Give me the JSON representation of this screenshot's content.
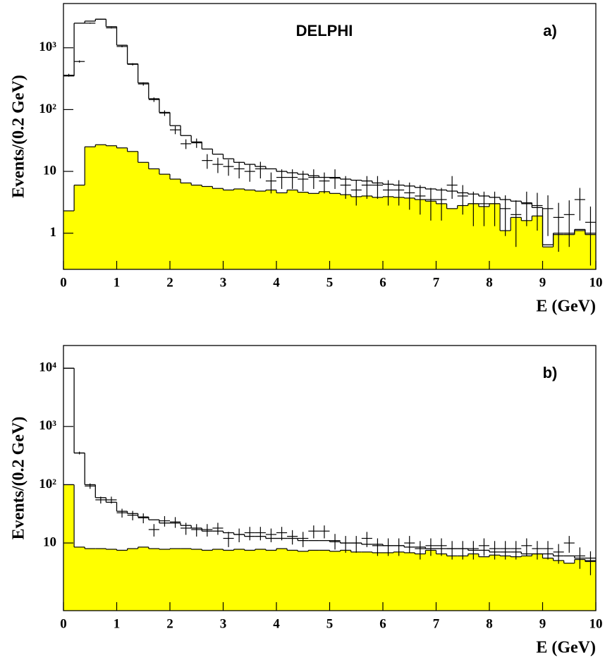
{
  "chart_data": [
    {
      "type": "histogram",
      "annotations": [
        "DELPHI",
        "a)"
      ],
      "y_label": "Events/(0.2 GeV)",
      "x_label": "E (GeV)",
      "log_y": true,
      "bins": [
        0,
        0.2,
        0.4,
        0.6,
        0.8,
        1,
        1.2,
        1.4,
        1.6,
        1.8,
        2,
        2.2,
        2.4,
        2.6,
        2.8,
        3,
        3.2,
        3.4,
        3.6,
        3.8,
        4,
        4.2,
        4.4,
        4.6,
        4.8,
        5,
        5.2,
        5.4,
        5.6,
        5.8,
        6,
        6.2,
        6.4,
        6.6,
        6.8,
        7,
        7.2,
        7.4,
        7.6,
        7.8,
        8,
        8.2,
        8.4,
        8.6,
        8.8,
        9,
        9.2,
        9.4,
        9.6,
        9.8,
        10
      ],
      "xlim": [
        0,
        10
      ],
      "xticks": [
        0,
        1,
        2,
        3,
        4,
        5,
        6,
        7,
        8,
        9,
        10
      ],
      "ylim": [
        0.26,
        5200
      ],
      "yticks": [
        1,
        10,
        {
          "value": 100,
          "label": "10²"
        },
        {
          "value": 1000,
          "label": "10³"
        }
      ],
      "series": [
        {
          "style": "fill",
          "color": "#ffff00",
          "values": [
            2.3,
            6,
            25,
            27,
            26,
            24,
            21,
            14,
            11,
            9,
            7.5,
            6.5,
            6,
            5.7,
            5.3,
            5,
            5.2,
            5,
            4.8,
            5,
            4.5,
            5,
            4.6,
            4.4,
            4.7,
            4.4,
            4.2,
            3.9,
            4,
            3.8,
            3.9,
            3.8,
            3.7,
            3.5,
            3.3,
            3,
            2.5,
            2.8,
            3,
            2.7,
            3,
            1.1,
            1.8,
            1.6,
            1.9,
            0.6,
            0.95,
            0.95,
            1.1,
            0.95
          ]
        },
        {
          "style": "step",
          "color": "#000000",
          "values": [
            350,
            2500,
            2700,
            2900,
            2200,
            1100,
            550,
            270,
            150,
            90,
            55,
            38,
            30,
            23,
            19,
            16,
            14,
            13,
            12,
            11,
            10,
            9.5,
            9,
            8.5,
            8,
            7.8,
            7.5,
            7.2,
            7,
            6.5,
            6.2,
            6,
            5.8,
            5.5,
            5.2,
            5,
            4.8,
            4.5,
            4.3,
            4,
            3.8,
            3.5,
            3.3,
            3.1,
            2.6,
            0.65,
            1,
            1,
            1.15,
            1
          ]
        },
        {
          "style": "points",
          "color": "#000000",
          "values": [
            360,
            600,
            2500,
            2900,
            2100,
            1050,
            540,
            260,
            145,
            88,
            47,
            28,
            29,
            15,
            13,
            12,
            11,
            10,
            11,
            7,
            8,
            8,
            7.5,
            8,
            7,
            8,
            6,
            5,
            6,
            6,
            5,
            5,
            4.5,
            4,
            3.5,
            3.5,
            6,
            4,
            3,
            3,
            3,
            2.5,
            2,
            3,
            2.8,
            2.5,
            1.8,
            2,
            3.5,
            1.5
          ],
          "errors": [
            19,
            24,
            50,
            54,
            46,
            32,
            23,
            16,
            12,
            9,
            7,
            5,
            5,
            4,
            3.6,
            3.5,
            3.3,
            3.2,
            3.3,
            2.6,
            2.8,
            2.8,
            2.7,
            2.8,
            2.6,
            2.8,
            2.4,
            2.2,
            2.4,
            2.4,
            2.2,
            2.2,
            2.1,
            2,
            1.9,
            1.9,
            2.4,
            2,
            1.7,
            1.7,
            1.7,
            1.6,
            1.4,
            1.7,
            1.7,
            1.6,
            1.3,
            1.4,
            1.9,
            1.2
          ]
        }
      ]
    },
    {
      "type": "histogram",
      "annotations": [
        "b)"
      ],
      "y_label": "Events/(0.2 GeV)",
      "x_label": "E (GeV)",
      "log_y": true,
      "bins": [
        0,
        0.2,
        0.4,
        0.6,
        0.8,
        1,
        1.2,
        1.4,
        1.6,
        1.8,
        2,
        2.2,
        2.4,
        2.6,
        2.8,
        3,
        3.2,
        3.4,
        3.6,
        3.8,
        4,
        4.2,
        4.4,
        4.6,
        4.8,
        5,
        5.2,
        5.4,
        5.6,
        5.8,
        6,
        6.2,
        6.4,
        6.6,
        6.8,
        7,
        7.2,
        7.4,
        7.6,
        7.8,
        8,
        8.2,
        8.4,
        8.6,
        8.8,
        9,
        9.2,
        9.4,
        9.6,
        9.8,
        10
      ],
      "xlim": [
        0,
        10
      ],
      "xticks": [
        0,
        1,
        2,
        3,
        4,
        5,
        6,
        7,
        8,
        9,
        10
      ],
      "ylim": [
        0.69,
        24500
      ],
      "yticks": [
        10,
        {
          "value": 100,
          "label": "10²"
        },
        {
          "value": 1000,
          "label": "10³"
        },
        {
          "value": 10000,
          "label": "10⁴"
        }
      ],
      "series": [
        {
          "style": "fill",
          "color": "#ffff00",
          "values": [
            100,
            8.5,
            8,
            8,
            7.8,
            7.5,
            8,
            8.5,
            8,
            7.8,
            8,
            8,
            7.8,
            7.5,
            7.8,
            7.5,
            7.8,
            7.5,
            7.8,
            7.5,
            8,
            7.5,
            7.2,
            7.5,
            7.5,
            7.2,
            7.5,
            7,
            7,
            6.8,
            6.8,
            7,
            6.8,
            6.5,
            7.5,
            6.5,
            6,
            6,
            6.5,
            5.8,
            6.2,
            6,
            5.8,
            6,
            6.5,
            5.5,
            5,
            4.5,
            5.2,
            4.8
          ]
        },
        {
          "style": "step",
          "color": "#000000",
          "values": [
            10000,
            350,
            100,
            60,
            50,
            35,
            32,
            28,
            25,
            22,
            22,
            20,
            18,
            16,
            16,
            15,
            14,
            13,
            13,
            12,
            12,
            12,
            11,
            11,
            11,
            10.5,
            10,
            10,
            9.5,
            9.5,
            9,
            9,
            8.5,
            8.5,
            8,
            8,
            8,
            8,
            7.5,
            7.5,
            7,
            7,
            7,
            6.5,
            6.5,
            6.5,
            6,
            6,
            5.5,
            5.5
          ]
        },
        {
          "style": "points",
          "color": "#000000",
          "values": [
            10000,
            350,
            95,
            55,
            55,
            33,
            30,
            27,
            17,
            24,
            23,
            18,
            17,
            17,
            18,
            12,
            14,
            15,
            15,
            14,
            15,
            13,
            12,
            16,
            16,
            11,
            10,
            10,
            12,
            9,
            9,
            9,
            10,
            8,
            9,
            9,
            8,
            8,
            8,
            9,
            8,
            8,
            8,
            9,
            8,
            8,
            7,
            10,
            6,
            5
          ],
          "errors": [
            100,
            19,
            10,
            7.4,
            7.4,
            5.7,
            5.5,
            5.2,
            4.1,
            4.9,
            4.8,
            4.2,
            4.1,
            4.1,
            4.2,
            3.5,
            3.7,
            3.9,
            3.9,
            3.7,
            3.9,
            3.6,
            3.5,
            4,
            4,
            3.3,
            3.2,
            3.2,
            3.5,
            3,
            3,
            3,
            3.2,
            2.8,
            3,
            3,
            2.8,
            2.8,
            2.8,
            3,
            2.8,
            2.8,
            2.8,
            3,
            2.8,
            2.8,
            2.6,
            3.2,
            2.4,
            2.2
          ]
        }
      ]
    }
  ]
}
